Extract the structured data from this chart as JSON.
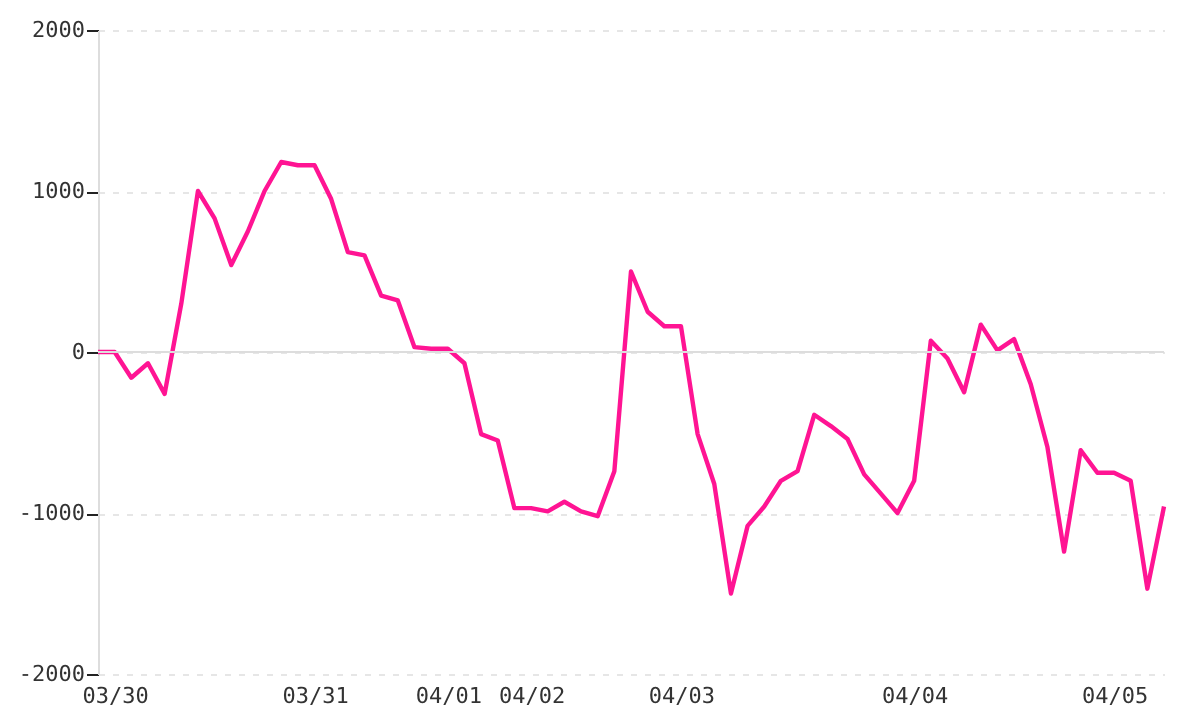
{
  "chart_data": {
    "type": "line",
    "categories": [
      null,
      "03/30",
      null,
      null,
      null,
      null,
      null,
      null,
      null,
      null,
      null,
      null,
      null,
      "03/31",
      null,
      null,
      null,
      null,
      null,
      null,
      null,
      "04/01",
      null,
      null,
      null,
      null,
      "04/02",
      null,
      null,
      null,
      null,
      null,
      null,
      null,
      null,
      "04/03",
      null,
      null,
      null,
      null,
      null,
      null,
      null,
      null,
      null,
      null,
      null,
      null,
      null,
      "04/04",
      null,
      null,
      null,
      null,
      null,
      null,
      null,
      null,
      null,
      null,
      null,
      "04/05",
      null,
      null,
      null
    ],
    "series": [
      {
        "color": "#ff1493",
        "values": [
          0,
          0,
          -160,
          -70,
          -260,
          300,
          1000,
          830,
          540,
          750,
          1000,
          1180,
          1160,
          1160,
          950,
          620,
          600,
          350,
          320,
          30,
          20,
          20,
          -70,
          -510,
          -550,
          -970,
          -970,
          -990,
          -930,
          -990,
          -1020,
          -740,
          500,
          250,
          160,
          160,
          -510,
          -820,
          -1500,
          -1080,
          -960,
          -800,
          -740,
          -390,
          -460,
          -540,
          -760,
          -880,
          -1000,
          -800,
          70,
          -40,
          -250,
          170,
          10,
          80,
          -200,
          -590,
          -1240,
          -610,
          -750,
          -750,
          -800,
          -1470,
          -960
        ]
      }
    ],
    "ylim": [
      -2000,
      2000
    ],
    "yticks": [
      -2000,
      -1000,
      0,
      1000,
      2000
    ],
    "grid": "y",
    "marker": "none",
    "line_style": "solid",
    "ref_lines": [
      {
        "axis": "y",
        "value": 0,
        "color": "#dddddd"
      }
    ]
  }
}
